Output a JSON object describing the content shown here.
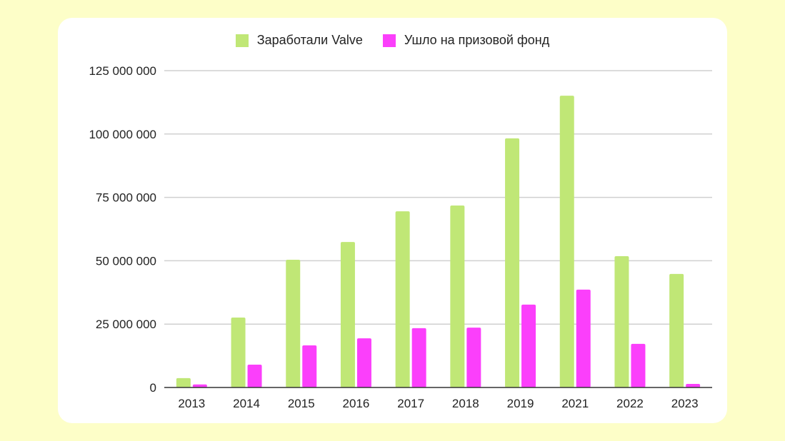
{
  "chart_data": {
    "type": "bar",
    "title": "",
    "xlabel": "",
    "ylabel": "",
    "categories": [
      "2013",
      "2014",
      "2015",
      "2016",
      "2017",
      "2018",
      "2019",
      "2021",
      "2022",
      "2023"
    ],
    "series": [
      {
        "name": "Заработали Valve",
        "color": "#c0e776",
        "values": [
          3700000,
          27600000,
          50400000,
          57400000,
          69500000,
          71800000,
          98300000,
          115100000,
          51800000,
          44800000
        ]
      },
      {
        "name": "Ушло на призовой фонд",
        "color": "#fb3ffb",
        "values": [
          1200000,
          9000000,
          16600000,
          19400000,
          23400000,
          23600000,
          32700000,
          38600000,
          17200000,
          1400000
        ]
      }
    ],
    "ylim": [
      0,
      125000000
    ],
    "yticks": [
      0,
      25000000,
      50000000,
      75000000,
      100000000,
      125000000
    ],
    "ytick_labels": [
      "0",
      "25 000 000",
      "50 000 000",
      "75 000 000",
      "100 000 000",
      "125 000 000"
    ],
    "grid": true,
    "legend_position": "top-center"
  }
}
